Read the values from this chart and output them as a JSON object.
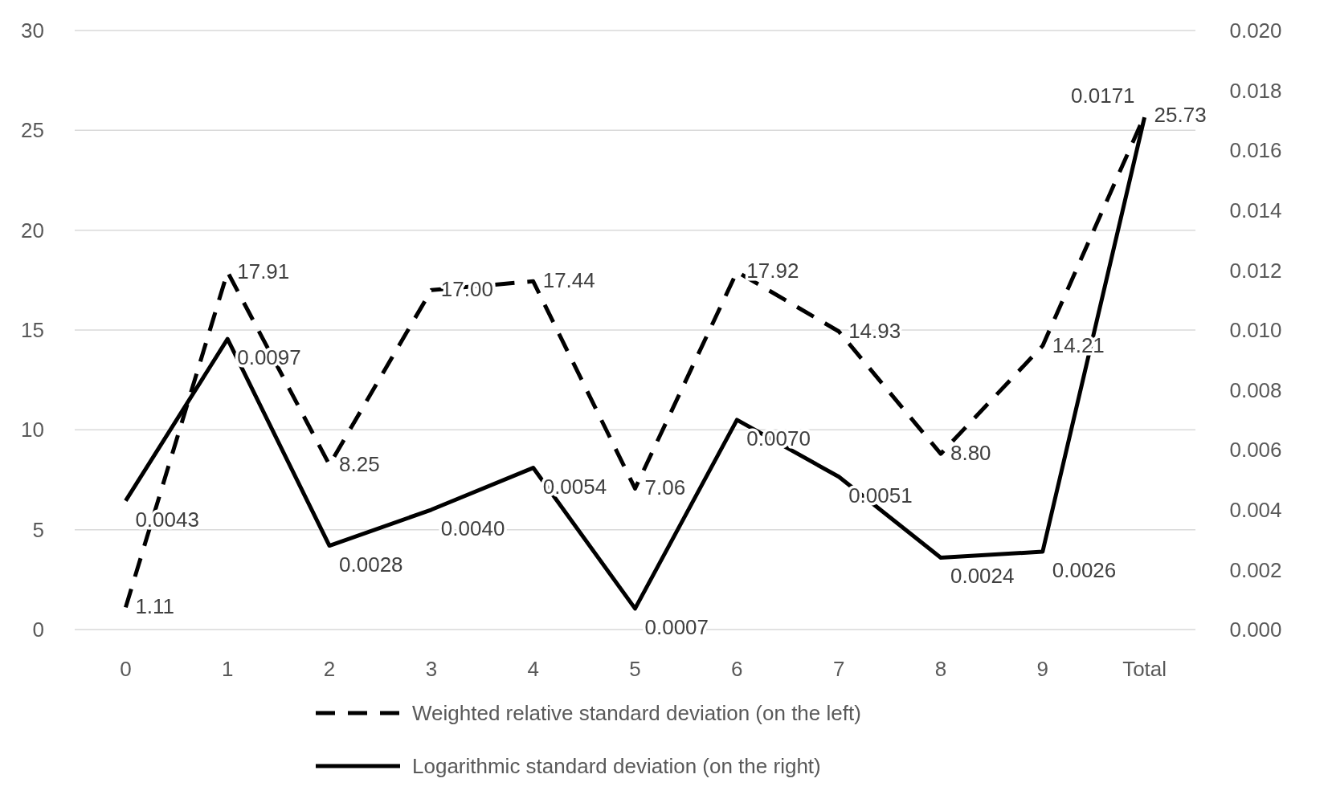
{
  "chart_data": {
    "type": "line",
    "categories": [
      "0",
      "1",
      "2",
      "3",
      "4",
      "5",
      "6",
      "7",
      "8",
      "9",
      "Total"
    ],
    "ylim": [
      0,
      30
    ],
    "yticks": [
      0,
      5,
      10,
      15,
      20,
      25,
      30
    ],
    "y2lim": [
      0,
      0.02
    ],
    "y2ticks": [
      {
        "value": 0,
        "label": "0.000"
      },
      {
        "value": 0.002,
        "label": "0.002"
      },
      {
        "value": 0.004,
        "label": "0.004"
      },
      {
        "value": 0.006,
        "label": "0.006"
      },
      {
        "value": 0.008,
        "label": "0.008"
      },
      {
        "value": 0.01,
        "label": "0.010"
      },
      {
        "value": 0.012,
        "label": "0.012"
      },
      {
        "value": 0.014,
        "label": "0.014"
      },
      {
        "value": 0.016,
        "label": "0.016"
      },
      {
        "value": 0.018,
        "label": "0.018"
      },
      {
        "value": 0.02,
        "label": "0.020"
      }
    ],
    "grid": "y",
    "legend": "bottom",
    "marker": "none",
    "series": [
      {
        "name": "Weighted relative standard deviation (on the left)",
        "color": "#000000",
        "line_style": "dashed",
        "values": [
          1.11,
          17.91,
          8.25,
          17.0,
          17.44,
          7.06,
          17.92,
          14.93,
          8.8,
          14.21,
          25.73
        ],
        "value_labels": [
          "1.11",
          "17.91",
          "8.25",
          "17.00",
          "17.44",
          "7.06",
          "17.92",
          "14.93",
          "8.80",
          "14.21",
          "25.73"
        ]
      },
      {
        "name": "Logarithmic standard deviation (on the right)",
        "color": "#000000",
        "line_style": "solid",
        "axis": "y2",
        "values": [
          0.0043,
          0.0097,
          0.0028,
          0.004,
          0.0054,
          0.0007,
          0.007,
          0.0051,
          0.0024,
          0.0026,
          0.0171
        ],
        "value_labels": [
          "0.0043",
          "0.0097",
          "0.0028",
          "0.0040",
          "0.0054",
          "0.0007",
          "0.0070",
          "0.0051",
          "0.0024",
          "0.0026",
          "0.0171"
        ]
      }
    ]
  }
}
